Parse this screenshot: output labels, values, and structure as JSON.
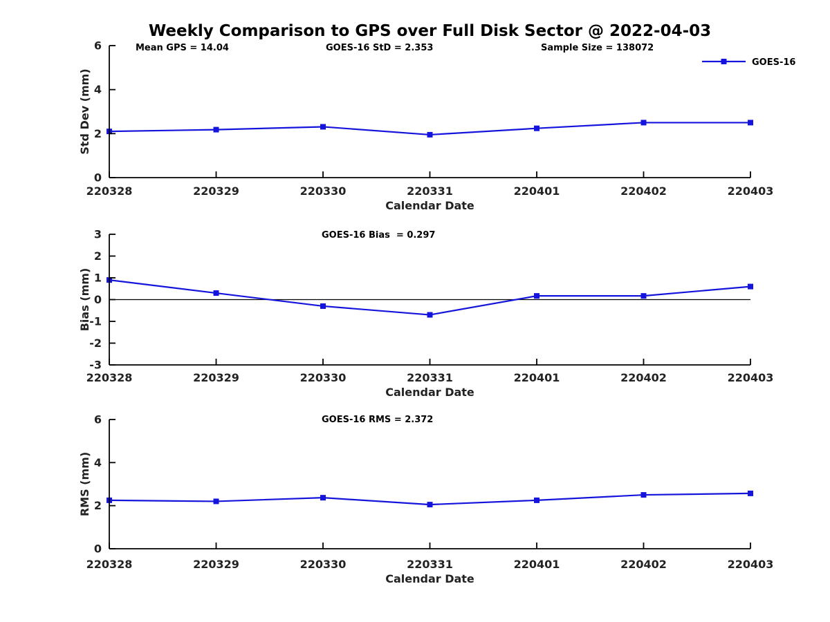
{
  "title": "Weekly Comparison to GPS over Full Disk Sector @ 2022-04-03",
  "colors": {
    "series": "#1414dd",
    "axis": "#000000",
    "zero_line": "#000000",
    "background": "#ffffff"
  },
  "legend": {
    "label": "GOES-16",
    "position": "top-right",
    "marker": "square"
  },
  "chart_data": [
    {
      "type": "line",
      "name": "std-dev",
      "series_name": "GOES-16",
      "annotations": [
        "Mean GPS = 14.04",
        "GOES-16 StD = 2.353",
        "Sample Size = 138072"
      ],
      "ylabel": "Std Dev (mm)",
      "xlabel": "Calendar Date",
      "categories": [
        "220328",
        "220329",
        "220330",
        "220331",
        "220401",
        "220402",
        "220403"
      ],
      "values": [
        2.1,
        2.18,
        2.31,
        1.95,
        2.24,
        2.5,
        2.5
      ],
      "ylim": [
        0,
        6
      ],
      "yticks": [
        0,
        2,
        4,
        6
      ],
      "grid": false,
      "zero_line": false
    },
    {
      "type": "line",
      "name": "bias",
      "series_name": "GOES-16",
      "annotations": [
        "GOES-16 Bias  = 0.297"
      ],
      "ylabel": "Bias (mm)",
      "xlabel": "Calendar Date",
      "categories": [
        "220328",
        "220329",
        "220330",
        "220331",
        "220401",
        "220402",
        "220403"
      ],
      "values": [
        0.9,
        0.3,
        -0.3,
        -0.7,
        0.17,
        0.17,
        0.6
      ],
      "ylim": [
        -3,
        3
      ],
      "yticks": [
        -3,
        -2,
        -1,
        0,
        1,
        2,
        3
      ],
      "grid": false,
      "zero_line": true
    },
    {
      "type": "line",
      "name": "rms",
      "series_name": "GOES-16",
      "annotations": [
        "GOES-16 RMS = 2.372"
      ],
      "ylabel": "RMS (mm)",
      "xlabel": "Calendar Date",
      "categories": [
        "220328",
        "220329",
        "220330",
        "220331",
        "220401",
        "220402",
        "220403"
      ],
      "values": [
        2.25,
        2.2,
        2.37,
        2.05,
        2.25,
        2.5,
        2.57
      ],
      "ylim": [
        0,
        6
      ],
      "yticks": [
        0,
        2,
        4,
        6
      ],
      "grid": false,
      "zero_line": false
    }
  ]
}
